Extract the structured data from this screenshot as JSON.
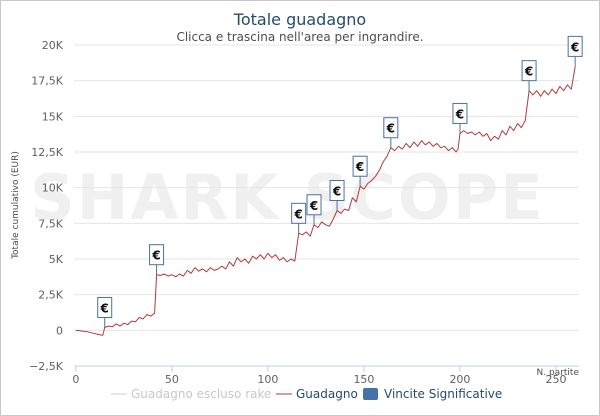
{
  "chart_data": {
    "type": "line",
    "title": "Totale guadagno",
    "subtitle": "Clicca e trascina nell'area per ingrandire.",
    "ylabel": "Totale cumulativo (EUR)",
    "xlabel": "N. partite",
    "xlim": [
      -1,
      262
    ],
    "ylim": [
      -2500,
      20000
    ],
    "x_ticks": [
      0,
      50,
      100,
      150,
      200,
      250
    ],
    "y_ticks": [
      -2500,
      0,
      2500,
      5000,
      7500,
      10000,
      12500,
      15000,
      17500,
      20000
    ],
    "y_tick_labels": [
      "−2,5K",
      "0",
      "2,5K",
      "5K",
      "7,5K",
      "10K",
      "12,5K",
      "15K",
      "17,5K",
      "20K"
    ],
    "grid": true,
    "legend_position": "bottom-center",
    "watermark": "SHARK SCOPE",
    "line_color": "#b23a3a",
    "flag_color": "#4572a7",
    "series": [
      {
        "name": "Guadagno escluso rake",
        "hidden": true,
        "color": "#cccccc",
        "points": []
      },
      {
        "name": "Guadagno",
        "color": "#b23a3a",
        "points": [
          [
            0,
            0
          ],
          [
            3,
            -50
          ],
          [
            6,
            -100
          ],
          [
            9,
            -200
          ],
          [
            12,
            -300
          ],
          [
            14,
            -350
          ],
          [
            15,
            200
          ],
          [
            17,
            300
          ],
          [
            19,
            250
          ],
          [
            21,
            450
          ],
          [
            23,
            300
          ],
          [
            25,
            500
          ],
          [
            27,
            400
          ],
          [
            29,
            650
          ],
          [
            31,
            600
          ],
          [
            33,
            900
          ],
          [
            35,
            800
          ],
          [
            37,
            1100
          ],
          [
            39,
            1000
          ],
          [
            41,
            1200
          ],
          [
            42,
            3900
          ],
          [
            44,
            3850
          ],
          [
            46,
            3950
          ],
          [
            48,
            3800
          ],
          [
            50,
            3900
          ],
          [
            52,
            3750
          ],
          [
            54,
            3950
          ],
          [
            56,
            3800
          ],
          [
            58,
            4200
          ],
          [
            60,
            4000
          ],
          [
            62,
            4400
          ],
          [
            64,
            4150
          ],
          [
            66,
            4300
          ],
          [
            68,
            4100
          ],
          [
            70,
            4400
          ],
          [
            72,
            4200
          ],
          [
            74,
            4300
          ],
          [
            76,
            4500
          ],
          [
            78,
            4300
          ],
          [
            80,
            4800
          ],
          [
            82,
            4500
          ],
          [
            84,
            5100
          ],
          [
            86,
            4800
          ],
          [
            88,
            5000
          ],
          [
            90,
            4700
          ],
          [
            92,
            5200
          ],
          [
            94,
            5000
          ],
          [
            96,
            5300
          ],
          [
            98,
            5000
          ],
          [
            100,
            5400
          ],
          [
            102,
            5100
          ],
          [
            104,
            5300
          ],
          [
            106,
            4900
          ],
          [
            108,
            5100
          ],
          [
            110,
            4800
          ],
          [
            112,
            5000
          ],
          [
            114,
            4850
          ],
          [
            116,
            6800
          ],
          [
            118,
            6700
          ],
          [
            120,
            6900
          ],
          [
            122,
            6600
          ],
          [
            124,
            7400
          ],
          [
            126,
            7200
          ],
          [
            128,
            7600
          ],
          [
            130,
            7400
          ],
          [
            132,
            7300
          ],
          [
            134,
            7800
          ],
          [
            136,
            8400
          ],
          [
            138,
            8200
          ],
          [
            140,
            8500
          ],
          [
            142,
            8400
          ],
          [
            144,
            9300
          ],
          [
            146,
            9000
          ],
          [
            148,
            10100
          ],
          [
            150,
            9900
          ],
          [
            152,
            10300
          ],
          [
            154,
            10500
          ],
          [
            156,
            10800
          ],
          [
            158,
            11200
          ],
          [
            160,
            11800
          ],
          [
            162,
            12200
          ],
          [
            164,
            12800
          ],
          [
            166,
            12600
          ],
          [
            168,
            12900
          ],
          [
            170,
            12700
          ],
          [
            172,
            13100
          ],
          [
            174,
            12800
          ],
          [
            176,
            13200
          ],
          [
            178,
            12900
          ],
          [
            180,
            13300
          ],
          [
            182,
            13000
          ],
          [
            184,
            13200
          ],
          [
            186,
            12900
          ],
          [
            188,
            13100
          ],
          [
            190,
            12800
          ],
          [
            192,
            12900
          ],
          [
            194,
            12600
          ],
          [
            196,
            12800
          ],
          [
            198,
            12500
          ],
          [
            199,
            12700
          ],
          [
            200,
            13800
          ],
          [
            202,
            14000
          ],
          [
            204,
            13800
          ],
          [
            206,
            13900
          ],
          [
            208,
            13700
          ],
          [
            210,
            13900
          ],
          [
            212,
            13600
          ],
          [
            214,
            13800
          ],
          [
            216,
            13300
          ],
          [
            218,
            13600
          ],
          [
            220,
            13400
          ],
          [
            222,
            14000
          ],
          [
            224,
            13700
          ],
          [
            226,
            14300
          ],
          [
            228,
            14000
          ],
          [
            230,
            14500
          ],
          [
            232,
            14200
          ],
          [
            234,
            14700
          ],
          [
            236,
            16800
          ],
          [
            238,
            16500
          ],
          [
            240,
            16800
          ],
          [
            242,
            16400
          ],
          [
            244,
            16800
          ],
          [
            246,
            16500
          ],
          [
            248,
            16900
          ],
          [
            250,
            16600
          ],
          [
            252,
            17100
          ],
          [
            254,
            16800
          ],
          [
            256,
            17200
          ],
          [
            258,
            16900
          ],
          [
            260,
            18500
          ]
        ]
      },
      {
        "name": "Vincite Significative",
        "color": "#4572a7",
        "flags": [
          {
            "x": 15,
            "y": 200,
            "label": "€"
          },
          {
            "x": 42,
            "y": 3900,
            "label": "€"
          },
          {
            "x": 116,
            "y": 6800,
            "label": "€"
          },
          {
            "x": 124,
            "y": 7400,
            "label": "€"
          },
          {
            "x": 136,
            "y": 8400,
            "label": "€"
          },
          {
            "x": 148,
            "y": 10100,
            "label": "€"
          },
          {
            "x": 164,
            "y": 12800,
            "label": "€"
          },
          {
            "x": 200,
            "y": 13800,
            "label": "€"
          },
          {
            "x": 236,
            "y": 16800,
            "label": "€"
          },
          {
            "x": 260,
            "y": 18500,
            "label": "€"
          }
        ]
      }
    ]
  }
}
